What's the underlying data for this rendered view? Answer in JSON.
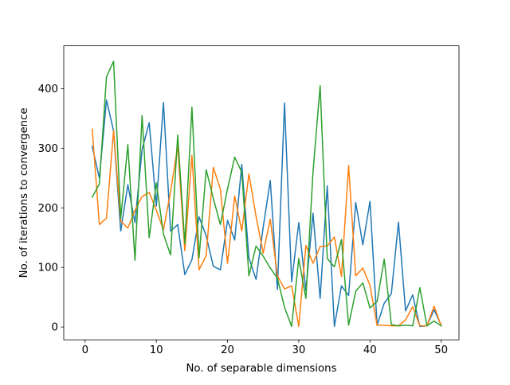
{
  "chart_data": {
    "type": "line",
    "title": "",
    "xlabel": "No. of separable dimensions",
    "ylabel": "No. of iterations to convergence",
    "xlim": [
      -3.0,
      52.5
    ],
    "ylim": [
      -21.5,
      472
    ],
    "xticks": [
      0,
      10,
      20,
      30,
      40,
      50
    ],
    "yticks": [
      0,
      100,
      200,
      300,
      400
    ],
    "grid": false,
    "legend": "none",
    "x": [
      1,
      2,
      3,
      4,
      5,
      6,
      7,
      8,
      9,
      10,
      11,
      12,
      13,
      14,
      15,
      16,
      17,
      18,
      19,
      20,
      21,
      22,
      23,
      24,
      25,
      26,
      27,
      28,
      29,
      30,
      31,
      32,
      33,
      34,
      35,
      36,
      37,
      38,
      39,
      40,
      41,
      42,
      43,
      44,
      45,
      46,
      47,
      48,
      49,
      50
    ],
    "series": [
      {
        "color": "#1f77b4",
        "values": [
          303,
          250,
          381,
          329,
          161,
          239,
          175,
          298,
          343,
          203,
          377,
          161,
          172,
          88,
          113,
          185,
          153,
          102,
          96,
          179,
          146,
          273,
          116,
          80,
          167,
          246,
          63,
          376,
          76,
          175,
          61,
          191,
          48,
          237,
          1,
          69,
          53,
          209,
          138,
          211,
          3,
          40,
          56,
          176,
          27,
          54,
          1,
          2,
          29,
          3
        ]
      },
      {
        "color": "#ff7f0e",
        "values": [
          332,
          172,
          183,
          330,
          178,
          166,
          196,
          219,
          226,
          196,
          163,
          227,
          303,
          128,
          288,
          96,
          120,
          268,
          231,
          107,
          220,
          161,
          257,
          186,
          124,
          181,
          86,
          64,
          69,
          1,
          137,
          107,
          135,
          136,
          151,
          85,
          271,
          86,
          99,
          70,
          3,
          3,
          2,
          2,
          12,
          34,
          2,
          2,
          35,
          2
        ]
      },
      {
        "color": "#2ca02c",
        "values": [
          218,
          240,
          420,
          446,
          182,
          306,
          112,
          355,
          150,
          242,
          156,
          121,
          322,
          140,
          369,
          116,
          264,
          216,
          172,
          232,
          285,
          260,
          86,
          136,
          119,
          99,
          82,
          33,
          1,
          115,
          48,
          260,
          405,
          115,
          101,
          147,
          3,
          60,
          74,
          32,
          43,
          114,
          4,
          2,
          3,
          2,
          66,
          2,
          10,
          2
        ]
      }
    ]
  }
}
